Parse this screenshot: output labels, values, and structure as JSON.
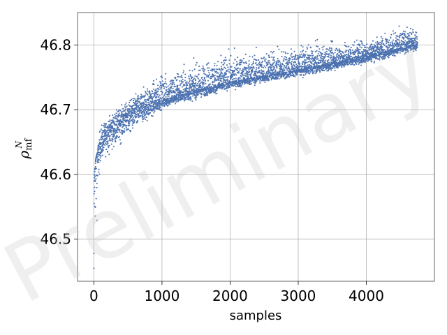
{
  "chart_data": {
    "type": "scatter",
    "title": "",
    "xlabel": "samples",
    "ylabel": "ρ",
    "ylabel_superscript": "N",
    "ylabel_subscript": "mf",
    "xlim": [
      -240,
      5000
    ],
    "ylim": [
      46.435,
      46.85
    ],
    "x_ticks": [
      0,
      1000,
      2000,
      3000,
      4000
    ],
    "x_tick_labels": [
      "0",
      "1000",
      "2000",
      "3000",
      "4000"
    ],
    "y_ticks": [
      46.5,
      46.6,
      46.7,
      46.8
    ],
    "y_tick_labels": [
      "46.5",
      "46.6",
      "46.7",
      "46.8"
    ],
    "grid": true,
    "marker_color": "#4c72b0",
    "watermark": "Preliminary",
    "series": [
      {
        "x_range": [
          0,
          4750
        ],
        "n_points": 4750,
        "trend": [
          {
            "x": 0,
            "y": 46.57
          },
          {
            "x": 10,
            "y": 46.6
          },
          {
            "x": 30,
            "y": 46.625
          },
          {
            "x": 100,
            "y": 46.645
          },
          {
            "x": 200,
            "y": 46.665
          },
          {
            "x": 400,
            "y": 46.683
          },
          {
            "x": 600,
            "y": 46.697
          },
          {
            "x": 1000,
            "y": 46.715
          },
          {
            "x": 1500,
            "y": 46.73
          },
          {
            "x": 2000,
            "y": 46.743
          },
          {
            "x": 2500,
            "y": 46.753
          },
          {
            "x": 3000,
            "y": 46.762
          },
          {
            "x": 3500,
            "y": 46.772
          },
          {
            "x": 4000,
            "y": 46.783
          },
          {
            "x": 4500,
            "y": 46.795
          },
          {
            "x": 4750,
            "y": 46.802
          }
        ],
        "upper_envelope": [
          {
            "x": 0,
            "y": 46.6
          },
          {
            "x": 100,
            "y": 46.68
          },
          {
            "x": 1000,
            "y": 46.76
          },
          {
            "x": 2000,
            "y": 46.79
          },
          {
            "x": 3000,
            "y": 46.8
          },
          {
            "x": 4000,
            "y": 46.81
          },
          {
            "x": 4500,
            "y": 46.828
          }
        ],
        "lower_envelope": [
          {
            "x": 0,
            "y": 46.455
          },
          {
            "x": 100,
            "y": 46.62
          },
          {
            "x": 1000,
            "y": 46.7
          },
          {
            "x": 2000,
            "y": 46.73
          },
          {
            "x": 3000,
            "y": 46.75
          },
          {
            "x": 4000,
            "y": 46.77
          },
          {
            "x": 4700,
            "y": 46.79
          }
        ]
      }
    ]
  }
}
